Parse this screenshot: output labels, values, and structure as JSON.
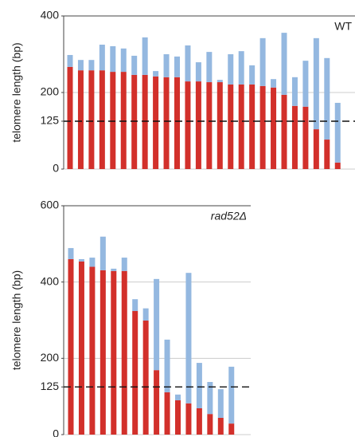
{
  "chart_data": [
    {
      "type": "stacked_bar",
      "ylabel": "telomere length (bp)",
      "annotation": "WT",
      "categories": [
        null,
        null,
        null,
        null,
        null,
        null,
        null,
        null,
        null,
        null,
        null,
        null,
        null,
        null,
        null,
        null,
        null,
        null,
        null,
        null,
        null,
        null,
        null,
        null,
        null,
        null
      ],
      "series": [
        {
          "color": "#d2302b",
          "values": [
            267,
            258,
            258,
            258,
            254,
            254,
            246,
            246,
            242,
            240,
            240,
            229,
            229,
            227,
            227,
            221,
            221,
            221,
            217,
            213,
            194,
            165,
            163,
            104,
            77,
            17
          ]
        },
        {
          "color": "#94b8e0",
          "values": [
            31,
            27,
            27,
            67,
            67,
            61,
            50,
            98,
            14,
            60,
            54,
            94,
            50,
            79,
            6,
            79,
            87,
            50,
            125,
            22,
            162,
            75,
            120,
            238,
            213,
            156
          ]
        }
      ],
      "ylim": [
        0,
        400
      ],
      "yticks": [
        0,
        125,
        200,
        400
      ],
      "reference_line": 125,
      "grid": true
    },
    {
      "type": "stacked_bar",
      "ylabel": "telomere length (bp)",
      "annotation": "rad52Δ",
      "categories": [
        null,
        null,
        null,
        null,
        null,
        null,
        null,
        null,
        null,
        null,
        null,
        null,
        null,
        null,
        null,
        null
      ],
      "series": [
        {
          "color": "#d2302b",
          "values": [
            460,
            454,
            440,
            431,
            429,
            429,
            324,
            299,
            169,
            111,
            90,
            82,
            69,
            54,
            44,
            29
          ]
        },
        {
          "color": "#94b8e0",
          "values": [
            29,
            6,
            24,
            88,
            6,
            35,
            31,
            32,
            239,
            138,
            15,
            342,
            119,
            84,
            75,
            149
          ]
        }
      ],
      "ylim": [
        0,
        600
      ],
      "yticks": [
        0,
        125,
        200,
        400,
        600
      ],
      "reference_line": 125,
      "grid": true
    }
  ]
}
